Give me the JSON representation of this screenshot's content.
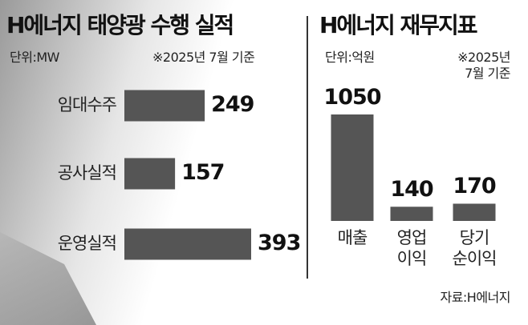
{
  "chart_data": [
    {
      "type": "bar",
      "orientation": "horizontal",
      "title": "H에너지 태양광 수행 실적",
      "unit": "단위:MW",
      "note": "※2025년 7월 기준",
      "categories": [
        "임대수주",
        "공사실적",
        "운영실적"
      ],
      "values": [
        249,
        157,
        393
      ],
      "color": "#555555"
    },
    {
      "type": "bar",
      "orientation": "vertical",
      "title": "H에너지 재무지표",
      "unit": "단위:억원",
      "note": "※2025년\n7월 기준",
      "categories": [
        "매출",
        "영업\n이익",
        "당기\n순이익"
      ],
      "values": [
        1050,
        140,
        170
      ],
      "color": "#555555",
      "source": "자료:H에너지"
    }
  ]
}
